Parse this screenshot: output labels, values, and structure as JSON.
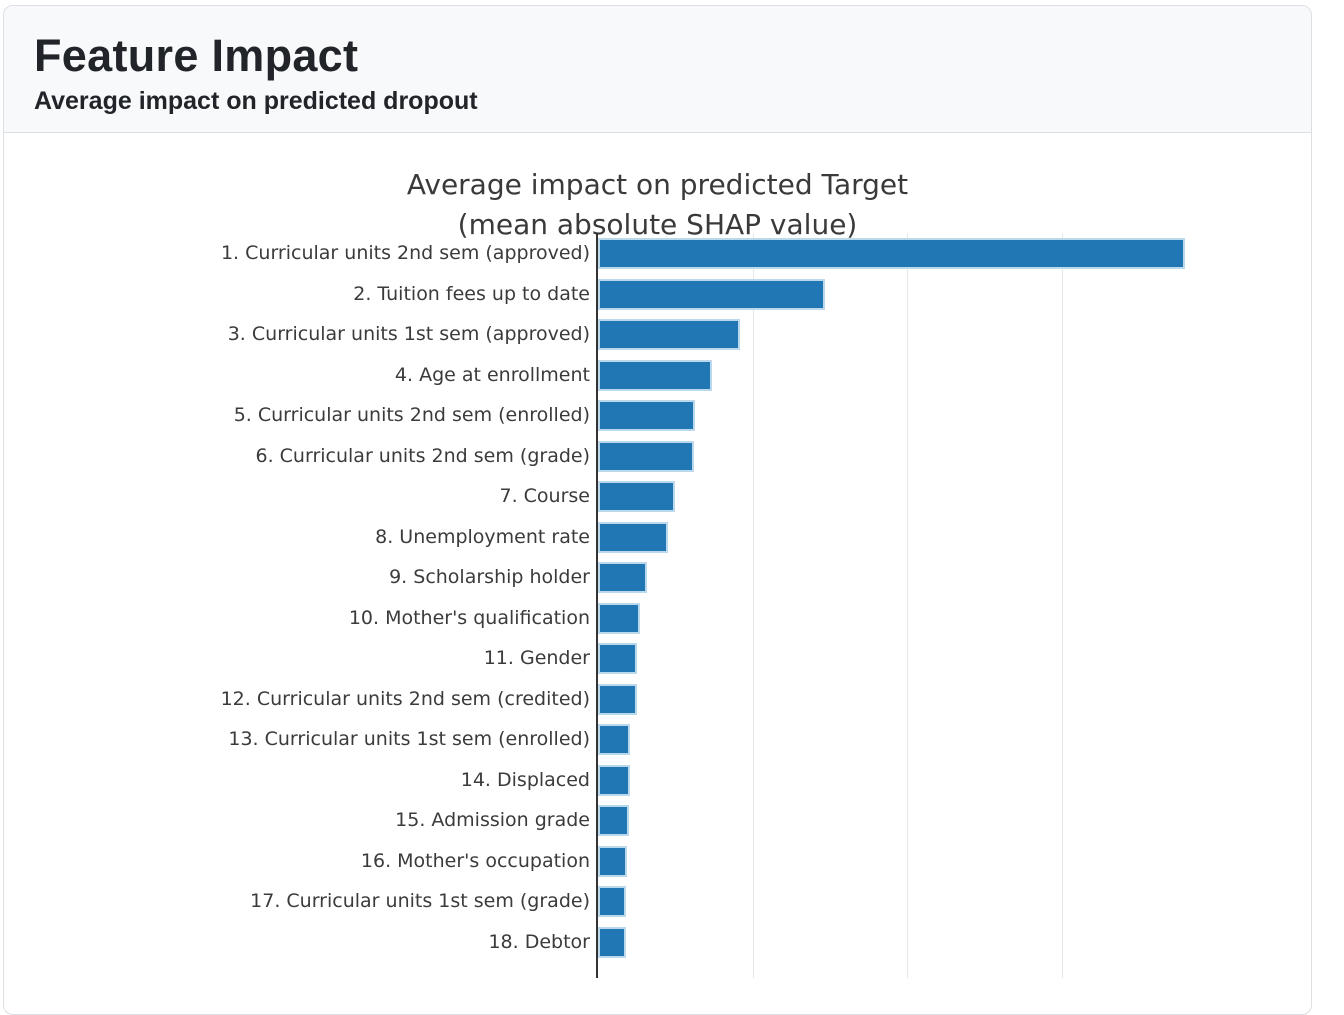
{
  "card": {
    "header": {
      "title": "Feature Impact",
      "subtitle": "Average impact on predicted dropout",
      "background": "#f8f9fa",
      "border_color": "#dcdfe3",
      "text_color": "#212529"
    }
  },
  "chart_data": {
    "type": "bar",
    "orientation": "horizontal",
    "title": "Average impact on predicted Target",
    "subtitle": "(mean absolute SHAP value)",
    "bar_color": "#2177b4",
    "bar_edge_color": "#bcd8ec",
    "grid_color": "#e7e7ea",
    "axis_color": "#333333",
    "label_color": "#3b3b3b",
    "grid": true,
    "legend": false,
    "x_axis": {
      "tick_labels_visible": false,
      "unit": "relative gridline intervals (numeric x tick labels are cropped below the visible area)",
      "gridlines_at": [
        1,
        2,
        3
      ],
      "xlim": [
        0,
        4.55
      ]
    },
    "features": [
      {
        "rank": 1,
        "label": "1. Curricular units 2nd sem (approved)",
        "value": 3.8
      },
      {
        "rank": 2,
        "label": "2. Tuition fees up to date",
        "value": 1.47
      },
      {
        "rank": 3,
        "label": "3. Curricular units 1st sem (approved)",
        "value": 0.92
      },
      {
        "rank": 4,
        "label": "4. Age at enrollment",
        "value": 0.74
      },
      {
        "rank": 5,
        "label": "5. Curricular units 2nd sem (enrolled)",
        "value": 0.63
      },
      {
        "rank": 6,
        "label": "6. Curricular units 2nd sem (grade)",
        "value": 0.62
      },
      {
        "rank": 7,
        "label": "7. Course",
        "value": 0.5
      },
      {
        "rank": 8,
        "label": "8. Unemployment rate",
        "value": 0.45
      },
      {
        "rank": 9,
        "label": "9. Scholarship holder",
        "value": 0.32
      },
      {
        "rank": 10,
        "label": "10. Mother's qualification",
        "value": 0.27
      },
      {
        "rank": 11,
        "label": "11. Gender",
        "value": 0.25
      },
      {
        "rank": 12,
        "label": "12. Curricular units 2nd sem (credited)",
        "value": 0.25
      },
      {
        "rank": 13,
        "label": "13. Curricular units 1st sem (enrolled)",
        "value": 0.21
      },
      {
        "rank": 14,
        "label": "14. Displaced",
        "value": 0.21
      },
      {
        "rank": 15,
        "label": "15. Admission grade",
        "value": 0.2
      },
      {
        "rank": 16,
        "label": "16. Mother's occupation",
        "value": 0.19
      },
      {
        "rank": 17,
        "label": "17. Curricular units 1st sem (grade)",
        "value": 0.18
      },
      {
        "rank": 18,
        "label": "18. Debtor",
        "value": 0.18
      }
    ]
  }
}
